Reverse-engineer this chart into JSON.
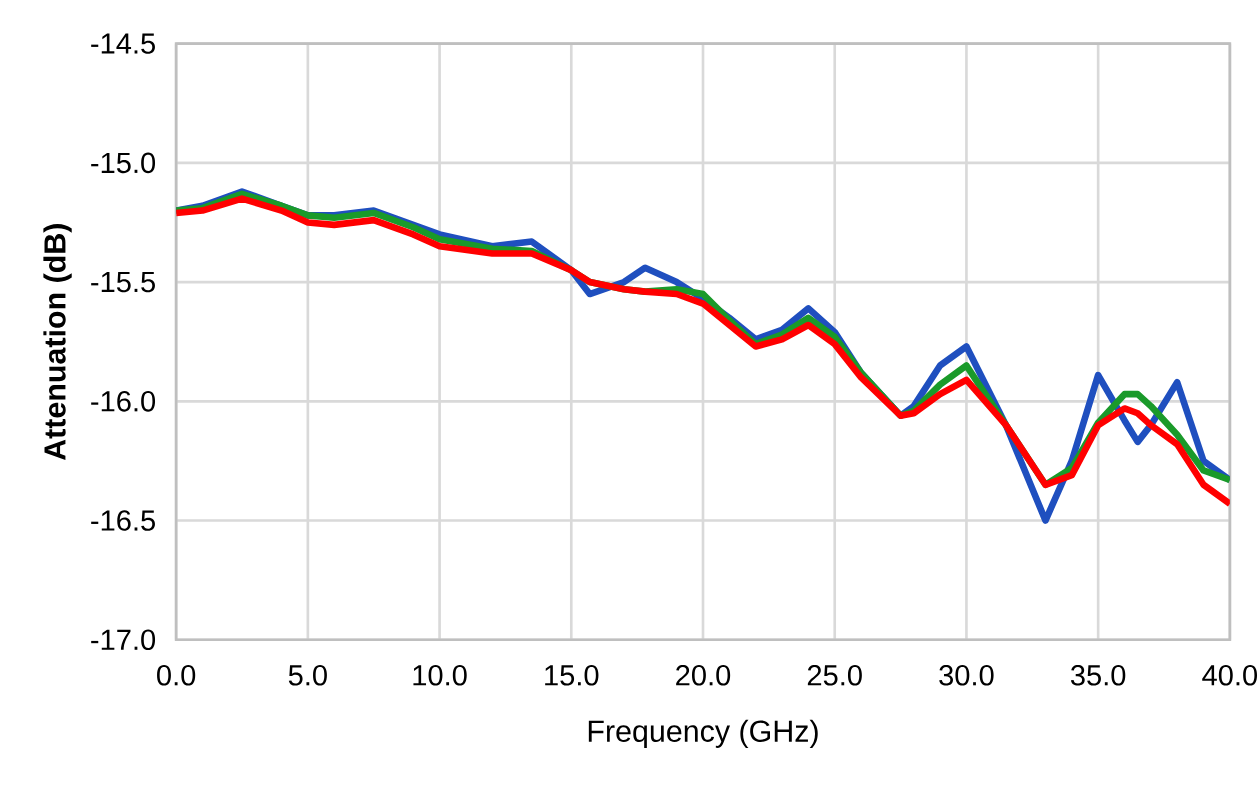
{
  "chart_data": {
    "type": "line",
    "xlabel": "Frequency (GHz)",
    "ylabel": "Attenuation (dB)",
    "x": [
      0,
      1,
      2.5,
      4,
      5,
      6,
      7.5,
      9,
      10,
      12,
      13.5,
      15,
      15.7,
      17,
      17.8,
      19,
      20,
      21,
      22,
      23,
      24,
      25,
      26,
      27.5,
      28,
      29,
      30,
      31.5,
      33,
      34,
      35,
      36,
      36.5,
      37,
      38,
      39,
      40
    ],
    "series": [
      {
        "color": "#1f4fbf",
        "values": [
          -15.2,
          -15.18,
          -15.12,
          -15.18,
          -15.22,
          -15.22,
          -15.2,
          -15.26,
          -15.3,
          -15.35,
          -15.33,
          -15.45,
          -15.55,
          -15.5,
          -15.44,
          -15.5,
          -15.57,
          -15.65,
          -15.74,
          -15.7,
          -15.61,
          -15.71,
          -15.88,
          -16.06,
          -16.02,
          -15.85,
          -15.77,
          -16.1,
          -16.5,
          -16.25,
          -15.89,
          -16.08,
          -16.17,
          -16.1,
          -15.92,
          -16.25,
          -16.33
        ]
      },
      {
        "color": "#1a9a2a",
        "values": [
          -15.2,
          -15.19,
          -15.13,
          -15.18,
          -15.22,
          -15.23,
          -15.21,
          -15.27,
          -15.32,
          -15.36,
          -15.37,
          -15.45,
          -15.5,
          -15.53,
          -15.54,
          -15.53,
          -15.55,
          -15.66,
          -15.76,
          -15.72,
          -15.65,
          -15.73,
          -15.88,
          -16.06,
          -16.04,
          -15.93,
          -15.85,
          -16.1,
          -16.35,
          -16.28,
          -16.09,
          -15.97,
          -15.97,
          -16.02,
          -16.14,
          -16.29,
          -16.33
        ]
      },
      {
        "color": "#ff0000",
        "values": [
          -15.21,
          -15.2,
          -15.15,
          -15.2,
          -15.25,
          -15.26,
          -15.24,
          -15.3,
          -15.35,
          -15.38,
          -15.38,
          -15.45,
          -15.5,
          -15.53,
          -15.54,
          -15.55,
          -15.59,
          -15.68,
          -15.77,
          -15.74,
          -15.68,
          -15.76,
          -15.9,
          -16.06,
          -16.05,
          -15.97,
          -15.91,
          -16.1,
          -16.35,
          -16.31,
          -16.1,
          -16.03,
          -16.05,
          -16.1,
          -16.18,
          -16.35,
          -16.43
        ]
      }
    ],
    "xlim": [
      0,
      40
    ],
    "xticks": [
      {
        "value": 0,
        "label": "0.0"
      },
      {
        "value": 5,
        "label": "5.0"
      },
      {
        "value": 10,
        "label": "10.0"
      },
      {
        "value": 15,
        "label": "15.0"
      },
      {
        "value": 20,
        "label": "20.0"
      },
      {
        "value": 25,
        "label": "25.0"
      },
      {
        "value": 30,
        "label": "30.0"
      },
      {
        "value": 35,
        "label": "35.0"
      },
      {
        "value": 40,
        "label": "40.0"
      }
    ],
    "ylim": [
      -17,
      -14.5
    ],
    "yticks": [
      {
        "value": -17,
        "label": "-17.0"
      },
      {
        "value": -16.5,
        "label": "-16.5"
      },
      {
        "value": -16,
        "label": "-16.0"
      },
      {
        "value": -15.5,
        "label": "-15.5"
      },
      {
        "value": -15,
        "label": "-15.0"
      },
      {
        "value": -14.5,
        "label": "-14.5"
      }
    ],
    "grid": true,
    "marker": "none",
    "line_style": "solid"
  }
}
